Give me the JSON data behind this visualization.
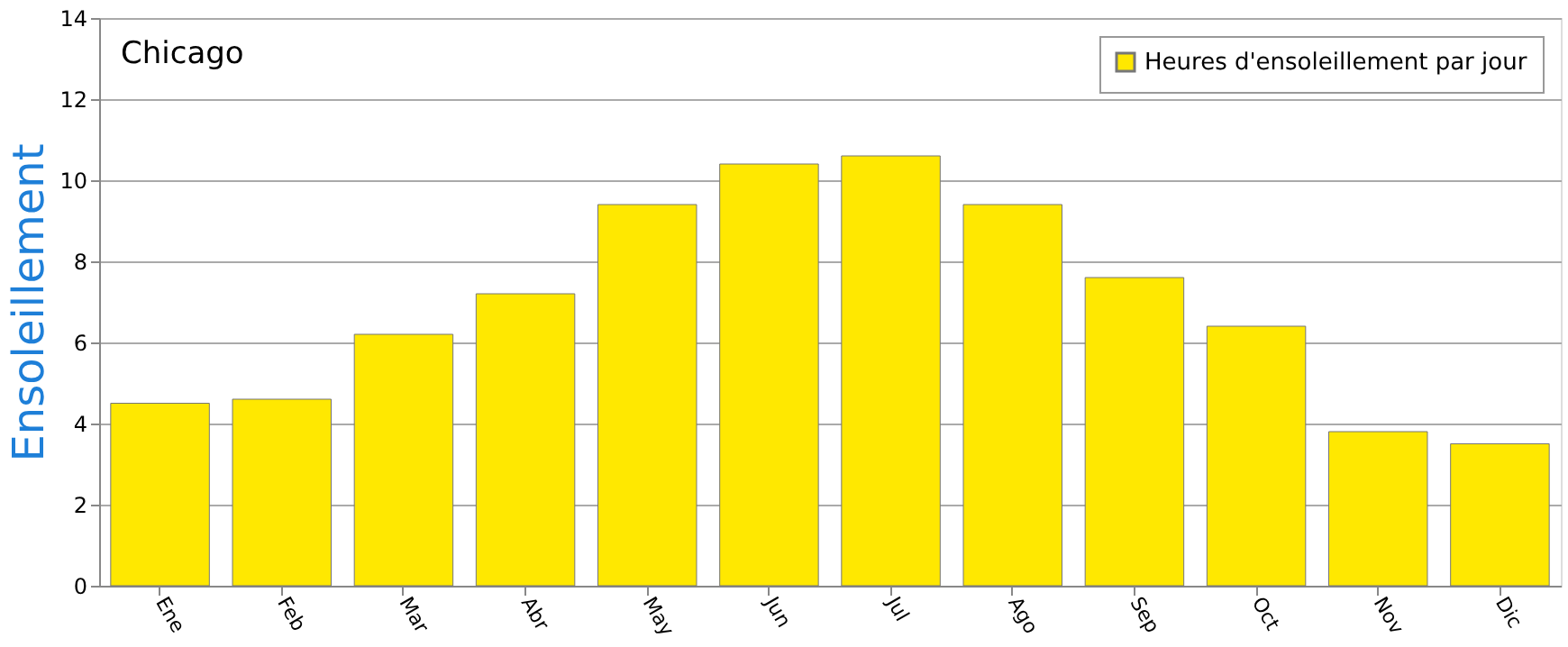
{
  "chart_data": {
    "type": "bar",
    "title": "Chicago",
    "ylabel": "Ensoleillement",
    "categories": [
      "Ene",
      "Feb",
      "Mar",
      "Abr",
      "May",
      "Jun",
      "Jul",
      "Ago",
      "Sep",
      "Oct",
      "Nov",
      "Dic"
    ],
    "series": [
      {
        "name": "Heures d'ensoleillement par jour",
        "color": "#ffe800",
        "values": [
          4.5,
          4.6,
          6.2,
          7.2,
          9.4,
          10.4,
          10.6,
          9.4,
          7.6,
          6.4,
          3.8,
          3.5
        ]
      }
    ],
    "ylim": [
      0,
      14
    ],
    "yticks": [
      0,
      2,
      4,
      6,
      8,
      10,
      12,
      14
    ],
    "grid": "y",
    "legend": "top right"
  }
}
